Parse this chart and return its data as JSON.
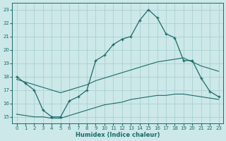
{
  "xlabel": "Humidex (Indice chaleur)",
  "bg_color": "#cce8e8",
  "line_color": "#1a6b6b",
  "grid_color": "#aad0d0",
  "ylim": [
    14.5,
    23.5
  ],
  "xlim": [
    -0.5,
    23.5
  ],
  "yticks": [
    15,
    16,
    17,
    18,
    19,
    20,
    21,
    22,
    23
  ],
  "xticks": [
    0,
    1,
    2,
    3,
    4,
    5,
    6,
    7,
    8,
    9,
    10,
    11,
    12,
    13,
    14,
    15,
    16,
    17,
    18,
    19,
    20,
    21,
    22,
    23
  ],
  "main_x": [
    0,
    1,
    2,
    3,
    4,
    5,
    6,
    7,
    8,
    9,
    10,
    11,
    12,
    13,
    14,
    15,
    16,
    17,
    18,
    19,
    20,
    21,
    22,
    23
  ],
  "main_y": [
    18.0,
    17.5,
    17.0,
    15.5,
    15.0,
    15.0,
    16.2,
    16.5,
    17.0,
    19.2,
    19.6,
    20.4,
    20.8,
    21.0,
    22.2,
    23.0,
    22.4,
    21.2,
    20.9,
    19.2,
    19.2,
    17.9,
    16.9,
    16.5
  ],
  "upper_x": [
    0,
    1,
    2,
    3,
    4,
    5,
    6,
    7,
    8,
    9,
    10,
    11,
    12,
    13,
    14,
    15,
    16,
    17,
    18,
    19,
    20,
    21,
    22,
    23
  ],
  "upper_y": [
    17.8,
    17.6,
    17.4,
    17.2,
    17.0,
    16.8,
    17.0,
    17.2,
    17.4,
    17.7,
    17.9,
    18.1,
    18.3,
    18.5,
    18.7,
    18.9,
    19.1,
    19.2,
    19.3,
    19.4,
    19.1,
    18.8,
    18.6,
    18.4
  ],
  "lower_x": [
    0,
    1,
    2,
    3,
    4,
    5,
    6,
    7,
    8,
    9,
    10,
    11,
    12,
    13,
    14,
    15,
    16,
    17,
    18,
    19,
    20,
    21,
    22,
    23
  ],
  "lower_y": [
    15.2,
    15.1,
    15.0,
    15.0,
    14.9,
    14.9,
    15.1,
    15.3,
    15.5,
    15.7,
    15.9,
    16.0,
    16.1,
    16.3,
    16.4,
    16.5,
    16.6,
    16.6,
    16.7,
    16.7,
    16.6,
    16.5,
    16.4,
    16.3
  ]
}
